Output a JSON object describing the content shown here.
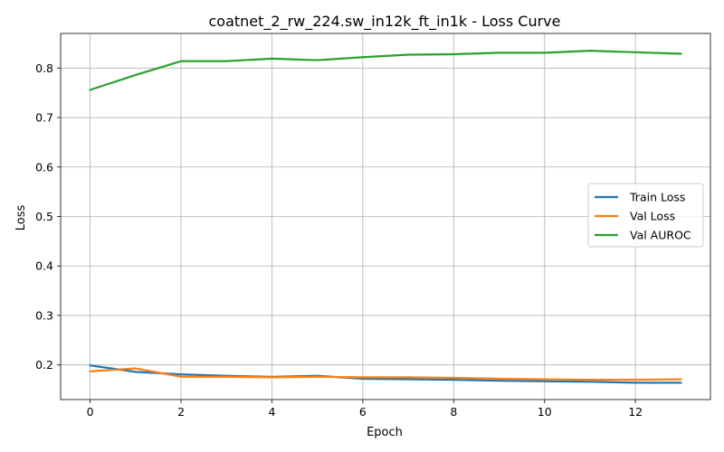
{
  "chart_data": {
    "type": "line",
    "title": "coatnet_2_rw_224.sw_in12k_ft_in1k - Loss Curve",
    "xlabel": "Epoch",
    "ylabel": "Loss",
    "xlim": [
      -0.65,
      13.65
    ],
    "ylim": [
      0.13,
      0.87
    ],
    "x_ticks": [
      0,
      2,
      4,
      6,
      8,
      10,
      12
    ],
    "y_ticks": [
      0.2,
      0.3,
      0.4,
      0.5,
      0.6,
      0.7,
      0.8
    ],
    "grid": true,
    "legend_position": "center-right",
    "x": [
      0,
      1,
      2,
      3,
      4,
      5,
      6,
      7,
      8,
      9,
      10,
      11,
      12,
      13
    ],
    "series": [
      {
        "name": "Train Loss",
        "color": "#1f77b4",
        "values": [
          0.199,
          0.186,
          0.181,
          0.178,
          0.176,
          0.178,
          0.172,
          0.171,
          0.17,
          0.168,
          0.167,
          0.166,
          0.164,
          0.164
        ]
      },
      {
        "name": "Val Loss",
        "color": "#ff7f0e",
        "values": [
          0.187,
          0.193,
          0.176,
          0.176,
          0.175,
          0.176,
          0.175,
          0.175,
          0.174,
          0.172,
          0.171,
          0.17,
          0.17,
          0.171
        ]
      },
      {
        "name": "Val AUROC",
        "color": "#2ca02c",
        "values": [
          0.756,
          0.786,
          0.814,
          0.814,
          0.819,
          0.816,
          0.822,
          0.827,
          0.828,
          0.831,
          0.831,
          0.835,
          0.832,
          0.829
        ]
      }
    ]
  }
}
